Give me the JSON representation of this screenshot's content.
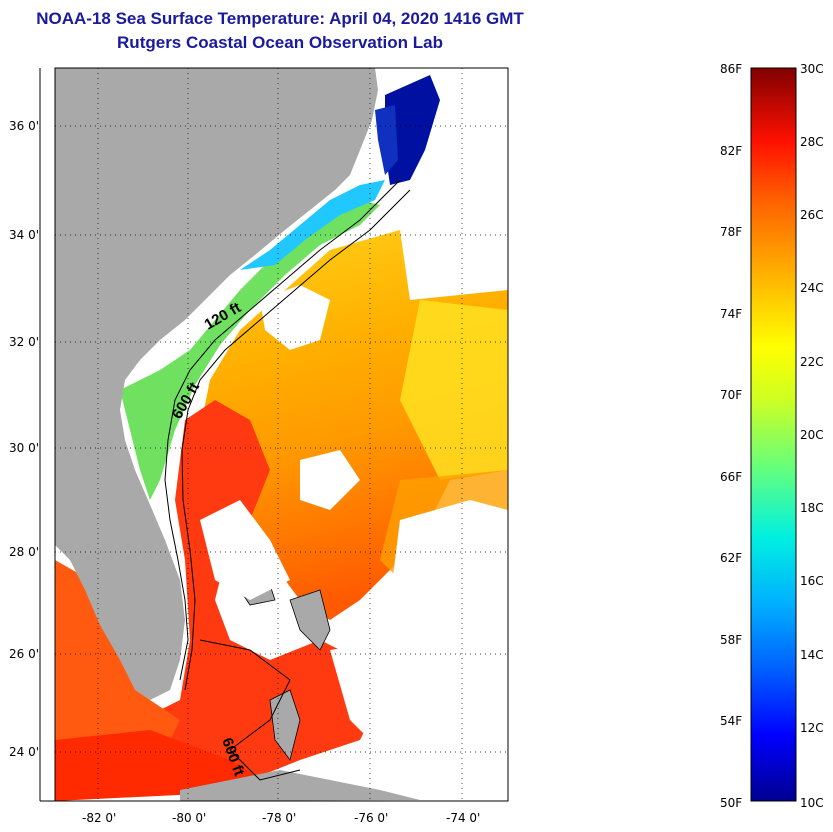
{
  "header": {
    "title": "NOAA-18 Sea Surface Temperature:  April 04, 2020 1416 GMT",
    "subtitle": "Rutgers Coastal Ocean Observation Lab"
  },
  "map": {
    "lon_ticks": [
      "-82 0'",
      "-80 0'",
      "-78 0'",
      "-76 0'",
      "-74 0'"
    ],
    "lat_ticks": [
      "36 0'",
      "34 0'",
      "32 0'",
      "30 0'",
      "28 0'",
      "26 0'",
      "24 0'"
    ],
    "contours": [
      "120 ft",
      "600 ft",
      "600 ft"
    ],
    "colors": {
      "land": "#a9a9a9",
      "cloud": "#ffffff"
    }
  },
  "colorbar": {
    "fahrenheit": [
      "86F",
      "82F",
      "78F",
      "74F",
      "70F",
      "66F",
      "62F",
      "58F",
      "54F",
      "50F"
    ],
    "celsius": [
      "30C",
      "28C",
      "26C",
      "24C",
      "22C",
      "20C",
      "18C",
      "16C",
      "14C",
      "12C",
      "10C"
    ],
    "colors": [
      "#000090",
      "#0000ff",
      "#0080ff",
      "#00e0ff",
      "#40ff90",
      "#c0ff30",
      "#ffff00",
      "#ffc000",
      "#ff8000",
      "#ff3000",
      "#d00000",
      "#800000"
    ]
  }
}
